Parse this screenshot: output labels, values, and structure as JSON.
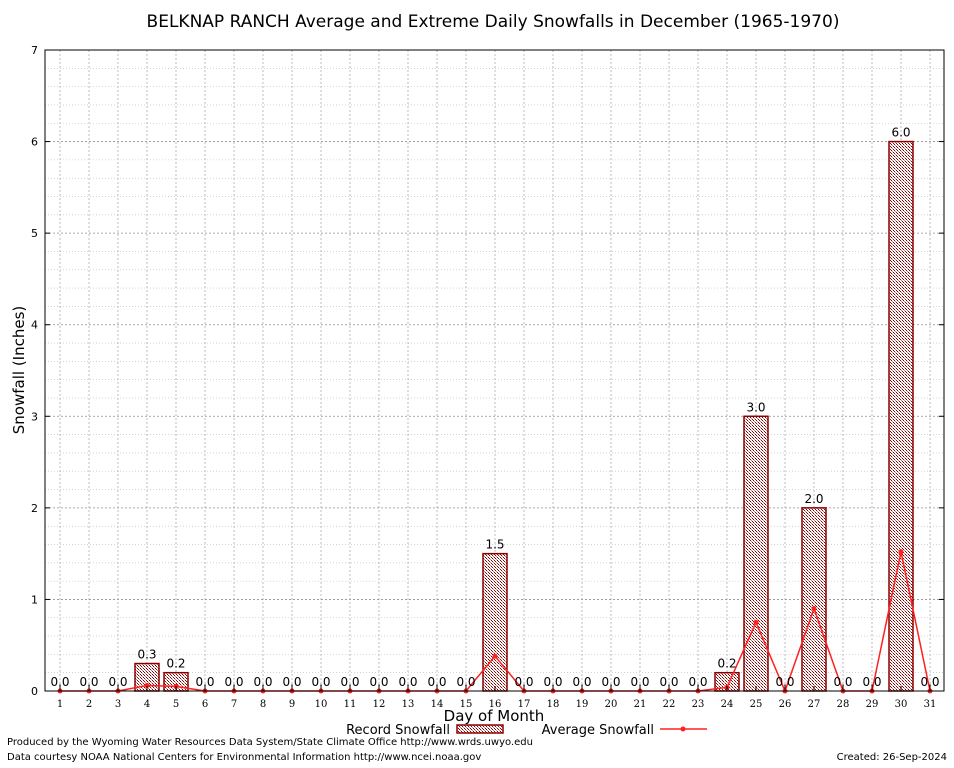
{
  "chart_data": {
    "type": "bar",
    "title": "BELKNAP RANCH Average and Extreme Daily Snowfalls in December (1965-1970)",
    "xlabel": "Day of Month",
    "ylabel": "Snowfall (Inches)",
    "ylim": [
      0,
      7
    ],
    "yticks": [
      "0",
      "1",
      "2",
      "3",
      "4",
      "5",
      "6",
      "7"
    ],
    "categories": [
      "1",
      "2",
      "3",
      "4",
      "5",
      "6",
      "7",
      "8",
      "9",
      "10",
      "11",
      "12",
      "13",
      "14",
      "15",
      "16",
      "17",
      "18",
      "19",
      "20",
      "21",
      "22",
      "23",
      "24",
      "25",
      "26",
      "27",
      "28",
      "29",
      "30",
      "31"
    ],
    "series": [
      {
        "name": "Record Snowfall",
        "kind": "bar",
        "color": "#8b0000",
        "values": [
          0,
          0,
          0,
          0.3,
          0.2,
          0,
          0,
          0,
          0,
          0,
          0,
          0,
          0,
          0,
          0,
          1.5,
          0,
          0,
          0,
          0,
          0,
          0,
          0,
          0.2,
          3.0,
          0,
          2.0,
          0,
          0,
          6.0,
          0
        ],
        "labels": [
          "0.0",
          "0.0",
          "0.0",
          "0.3",
          "0.2",
          "0.0",
          "0.0",
          "0.0",
          "0.0",
          "0.0",
          "0.0",
          "0.0",
          "0.0",
          "0.0",
          "0.0",
          "1.5",
          "0.0",
          "0.0",
          "0.0",
          "0.0",
          "0.0",
          "0.0",
          "0.0",
          "0.2",
          "3.0",
          "0.0",
          "2.0",
          "0.0",
          "0.0",
          "6.0",
          "0.0"
        ]
      },
      {
        "name": "Average Snowfall",
        "kind": "line",
        "color": "#ff2020",
        "values": [
          0,
          0,
          0,
          0.06,
          0.05,
          0,
          0,
          0,
          0,
          0,
          0,
          0,
          0,
          0,
          0,
          0.38,
          0,
          0,
          0,
          0,
          0,
          0,
          0,
          0.04,
          0.75,
          0,
          0.9,
          0,
          0,
          1.52,
          0
        ]
      }
    ],
    "grid": true,
    "legend_position": "bottom"
  },
  "footer": {
    "line1": "Produced by the Wyoming Water Resources Data System/State Climate Office http://www.wrds.uwyo.edu",
    "line2": "Data courtesy NOAA National Centers for Environmental Information http://www.ncei.noaa.gov",
    "created": "Created: 26-Sep-2024"
  }
}
